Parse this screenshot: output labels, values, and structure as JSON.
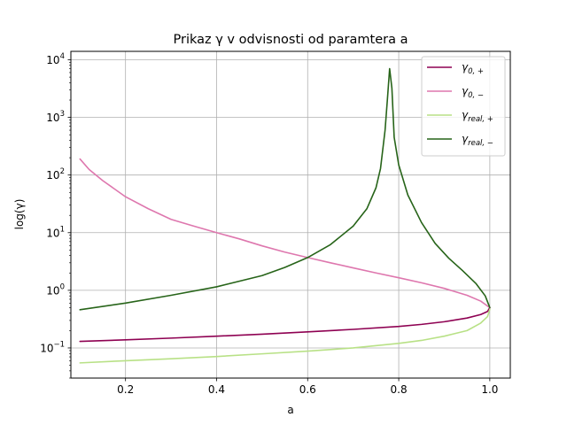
{
  "chart_data": {
    "type": "line",
    "title": "Prikaz γ v odvisnosti od paramtera a",
    "xlabel": "a",
    "ylabel": "log(γ)",
    "xscale": "linear",
    "yscale": "log",
    "xlim": [
      0.08,
      1.045
    ],
    "ylim": [
      0.03,
      14000
    ],
    "xticks": [
      0.2,
      0.4,
      0.6,
      0.8,
      1.0
    ],
    "xtick_labels": [
      "0.2",
      "0.4",
      "0.6",
      "0.8",
      "1.0"
    ],
    "yticks": [
      0.1,
      1,
      10,
      100,
      1000,
      10000
    ],
    "ytick_labels": [
      {
        "base": "10",
        "exp": "−1"
      },
      {
        "base": "10",
        "exp": "0"
      },
      {
        "base": "10",
        "exp": "1"
      },
      {
        "base": "10",
        "exp": "2"
      },
      {
        "base": "10",
        "exp": "3"
      },
      {
        "base": "10",
        "exp": "4"
      }
    ],
    "grid": true,
    "legend_position": "top-right",
    "series": [
      {
        "legend": {
          "base": "γ",
          "sub": "0, +"
        },
        "color": "#8e0152",
        "points": [
          [
            0.1,
            0.13
          ],
          [
            0.2,
            0.138
          ],
          [
            0.3,
            0.148
          ],
          [
            0.4,
            0.16
          ],
          [
            0.5,
            0.173
          ],
          [
            0.6,
            0.19
          ],
          [
            0.7,
            0.21
          ],
          [
            0.8,
            0.236
          ],
          [
            0.85,
            0.256
          ],
          [
            0.9,
            0.285
          ],
          [
            0.95,
            0.33
          ],
          [
            0.98,
            0.38
          ],
          [
            0.995,
            0.43
          ],
          [
            1.0,
            0.5
          ]
        ]
      },
      {
        "legend": {
          "base": "γ",
          "sub": "0, −"
        },
        "color": "#de77ae",
        "points": [
          [
            0.1,
            190
          ],
          [
            0.12,
            125
          ],
          [
            0.15,
            80
          ],
          [
            0.2,
            42
          ],
          [
            0.25,
            26
          ],
          [
            0.3,
            17
          ],
          [
            0.35,
            13
          ],
          [
            0.4,
            10
          ],
          [
            0.45,
            7.8
          ],
          [
            0.5,
            5.9
          ],
          [
            0.55,
            4.6
          ],
          [
            0.6,
            3.7
          ],
          [
            0.65,
            3.0
          ],
          [
            0.7,
            2.45
          ],
          [
            0.75,
            2.0
          ],
          [
            0.8,
            1.65
          ],
          [
            0.85,
            1.35
          ],
          [
            0.9,
            1.08
          ],
          [
            0.95,
            0.82
          ],
          [
            0.98,
            0.65
          ],
          [
            1.0,
            0.5
          ]
        ]
      },
      {
        "legend": {
          "base": "γ",
          "sub": "real, +"
        },
        "color": "#b8e186",
        "points": [
          [
            0.1,
            0.055
          ],
          [
            0.2,
            0.06
          ],
          [
            0.3,
            0.065
          ],
          [
            0.4,
            0.071
          ],
          [
            0.5,
            0.079
          ],
          [
            0.6,
            0.088
          ],
          [
            0.7,
            0.1
          ],
          [
            0.8,
            0.12
          ],
          [
            0.85,
            0.135
          ],
          [
            0.9,
            0.16
          ],
          [
            0.95,
            0.2
          ],
          [
            0.98,
            0.27
          ],
          [
            0.995,
            0.35
          ],
          [
            1.0,
            0.47
          ]
        ]
      },
      {
        "legend": {
          "base": "γ",
          "sub": "real, −"
        },
        "color": "#276419",
        "points": [
          [
            0.1,
            0.46
          ],
          [
            0.2,
            0.6
          ],
          [
            0.3,
            0.82
          ],
          [
            0.4,
            1.15
          ],
          [
            0.5,
            1.8
          ],
          [
            0.55,
            2.5
          ],
          [
            0.6,
            3.7
          ],
          [
            0.65,
            6.2
          ],
          [
            0.7,
            13
          ],
          [
            0.73,
            26
          ],
          [
            0.75,
            60
          ],
          [
            0.76,
            130
          ],
          [
            0.77,
            600
          ],
          [
            0.775,
            2000
          ],
          [
            0.78,
            7000
          ],
          [
            0.785,
            3200
          ],
          [
            0.79,
            450
          ],
          [
            0.8,
            150
          ],
          [
            0.82,
            45
          ],
          [
            0.85,
            15
          ],
          [
            0.88,
            6.5
          ],
          [
            0.91,
            3.6
          ],
          [
            0.94,
            2.2
          ],
          [
            0.97,
            1.3
          ],
          [
            0.99,
            0.8
          ],
          [
            1.0,
            0.5
          ]
        ]
      }
    ]
  }
}
